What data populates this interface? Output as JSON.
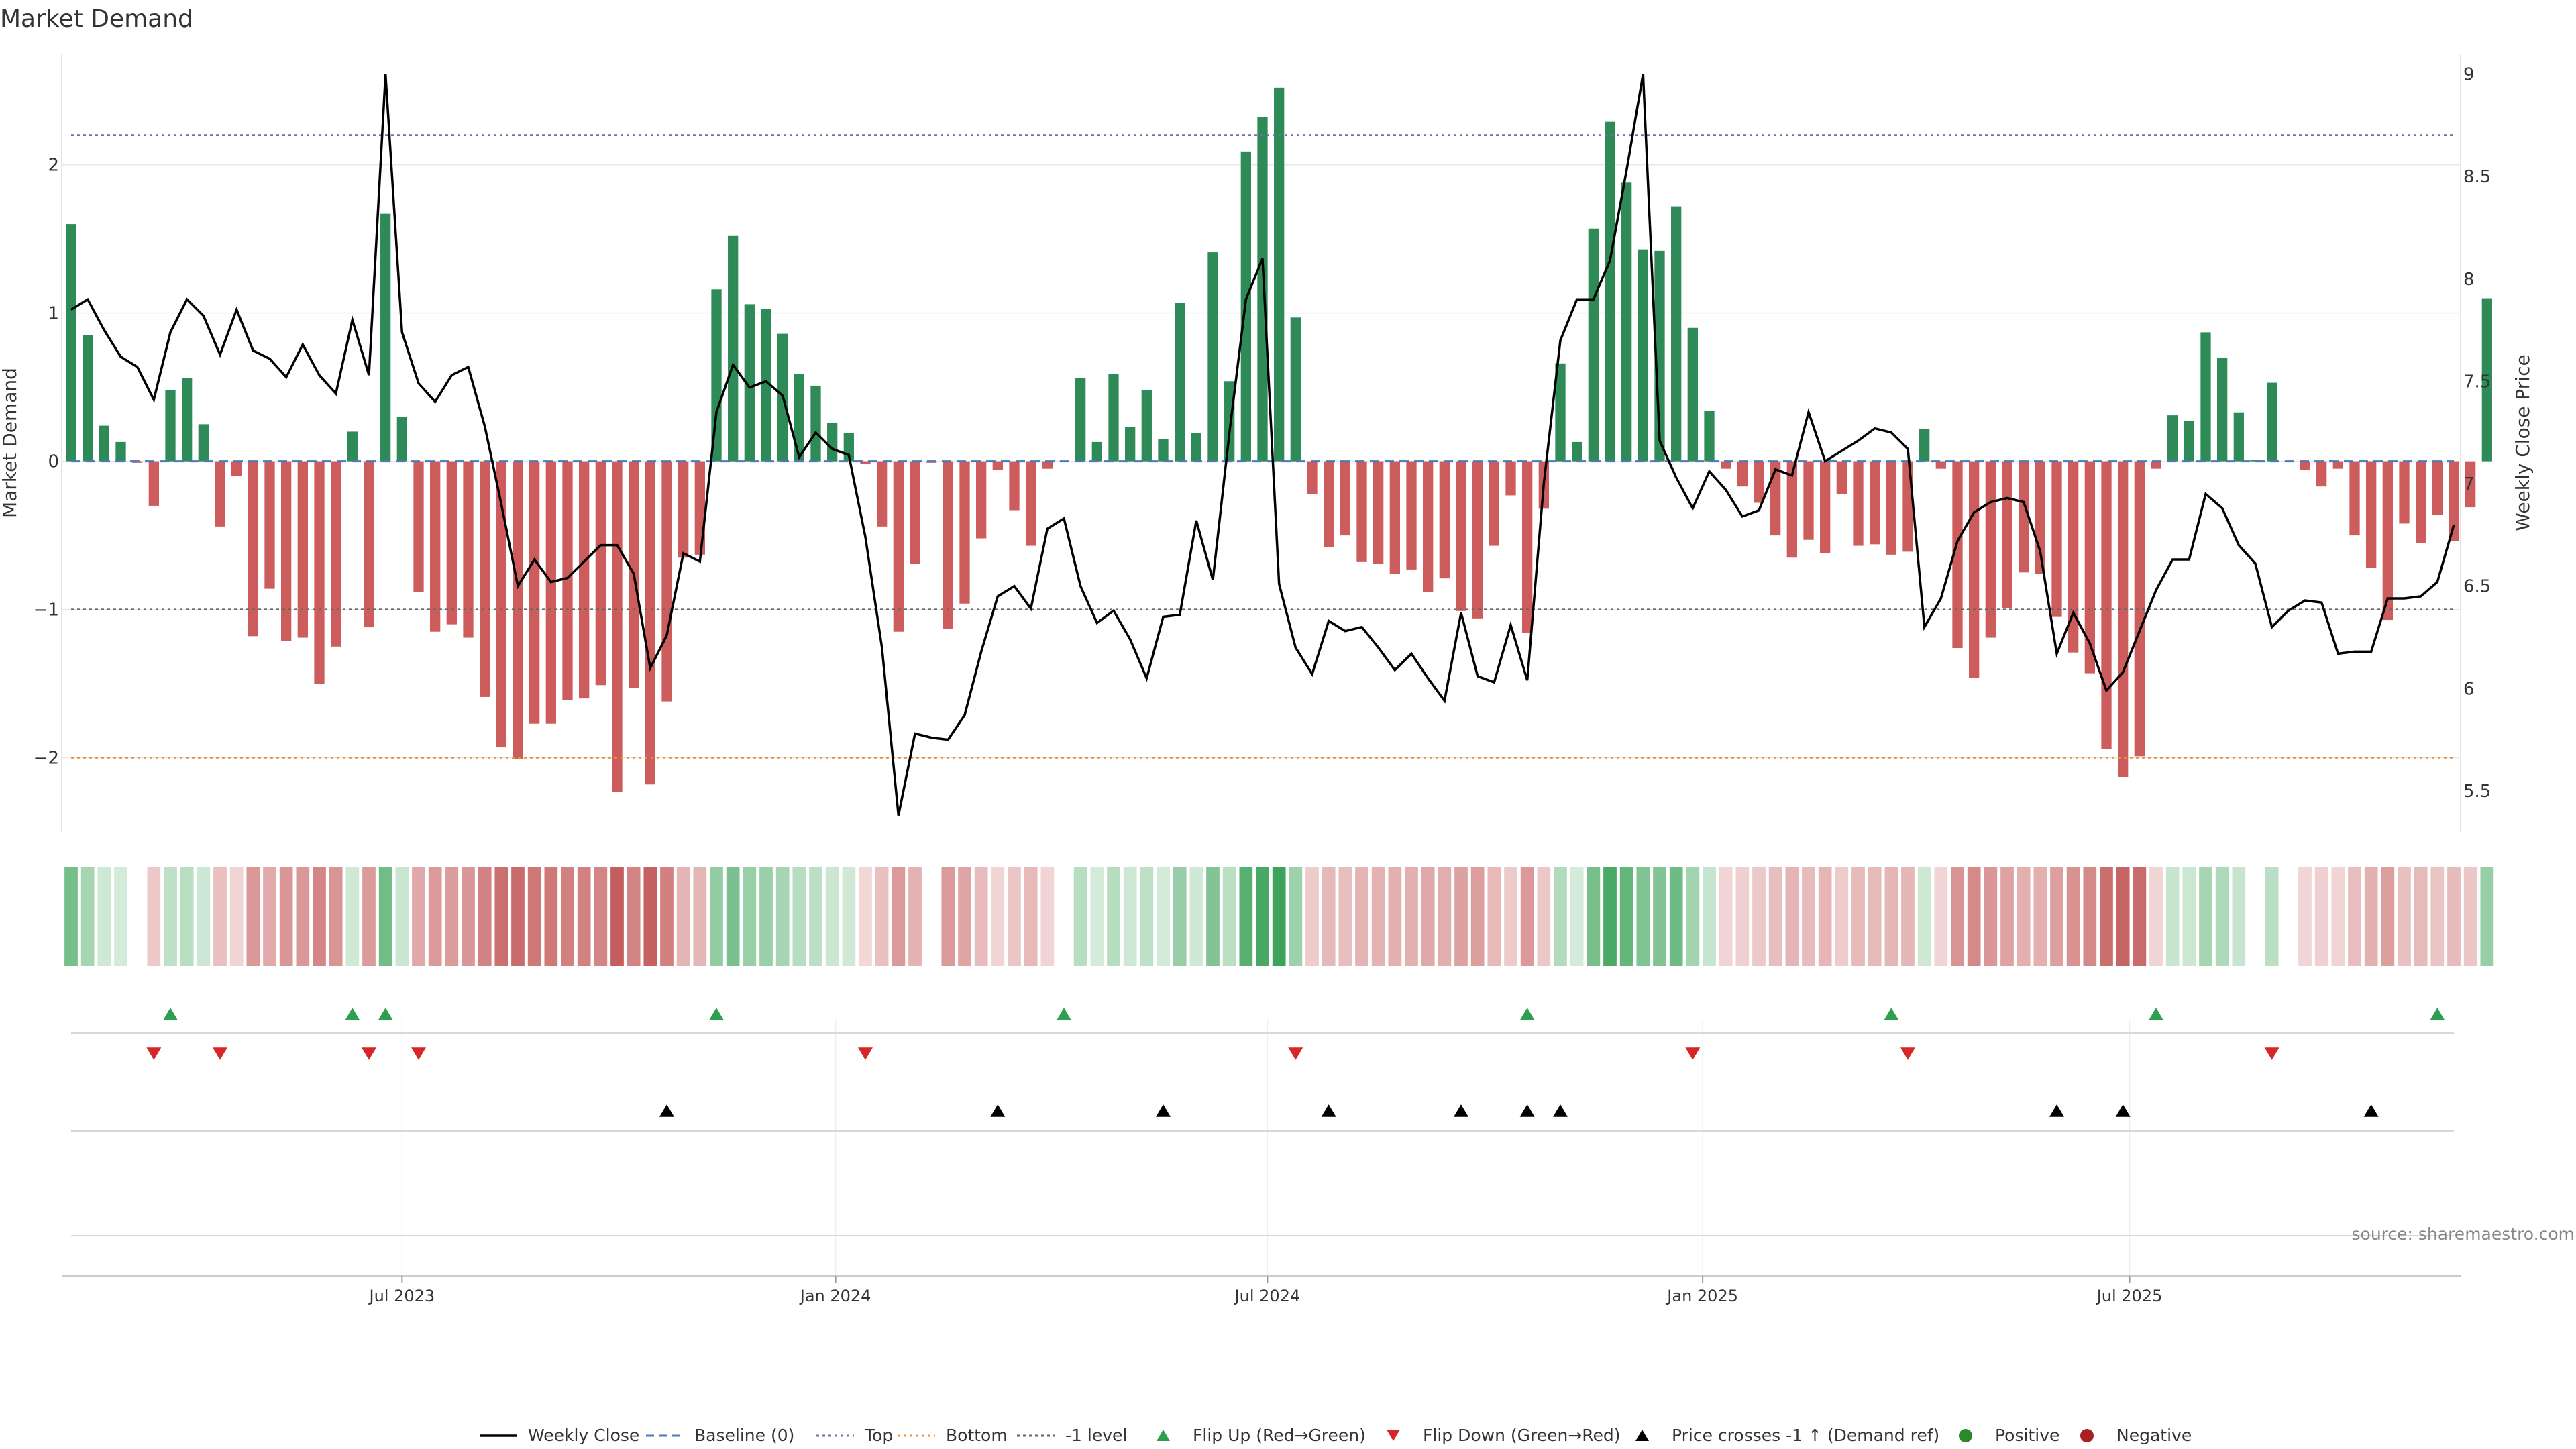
{
  "chart_data": {
    "type": "bar",
    "title": "Market Demand",
    "ylabel_left": "Market Demand",
    "ylabel_right": "Weekly Close Price",
    "ylim_left": [
      -2.5,
      2.75
    ],
    "ylim_right": [
      5.3,
      9.1
    ],
    "yticks_left": [
      {
        "v": 2,
        "label": "2"
      },
      {
        "v": 1,
        "label": "1"
      },
      {
        "v": 0,
        "label": "0"
      },
      {
        "v": -1,
        "label": "−1"
      },
      {
        "v": -2,
        "label": "−2"
      }
    ],
    "yticks_right": [
      {
        "v": 9,
        "label": "9"
      },
      {
        "v": 8.5,
        "label": "8.5"
      },
      {
        "v": 8,
        "label": "8"
      },
      {
        "v": 7.5,
        "label": "7.5"
      },
      {
        "v": 7,
        "label": "7"
      },
      {
        "v": 6.5,
        "label": "6.5"
      },
      {
        "v": 6,
        "label": "6"
      },
      {
        "v": 5.5,
        "label": "5.5"
      }
    ],
    "x_index_range": [
      0,
      144
    ],
    "xticks": [
      {
        "i": 20,
        "label": "Jul 2023"
      },
      {
        "i": 46.2,
        "label": "Jan 2024"
      },
      {
        "i": 72.3,
        "label": "Jul 2024"
      },
      {
        "i": 98.6,
        "label": "Jan 2025"
      },
      {
        "i": 124.4,
        "label": "Jul 2025"
      }
    ],
    "reference_lines": {
      "top": 2.2,
      "bottom": -2.0,
      "minus_one": -1.0,
      "baseline": 0
    },
    "demand": [
      1.6,
      0.85,
      0.24,
      0.13,
      -0.01,
      -0.3,
      0.48,
      0.56,
      0.25,
      -0.44,
      -0.1,
      -1.18,
      -0.86,
      -1.21,
      -1.19,
      -1.5,
      -1.25,
      0.2,
      -1.12,
      1.67,
      0.3,
      -0.88,
      -1.15,
      -1.1,
      -1.19,
      -1.59,
      -1.93,
      -2.01,
      -1.77,
      -1.77,
      -1.61,
      -1.6,
      -1.51,
      -2.23,
      -1.53,
      -2.18,
      -1.62,
      -0.65,
      -0.63,
      1.16,
      1.52,
      1.06,
      1.03,
      0.86,
      0.59,
      0.51,
      0.26,
      0.19,
      -0.02,
      -0.44,
      -1.15,
      -0.69,
      -0.01,
      -1.13,
      -0.96,
      -0.52,
      -0.06,
      -0.33,
      -0.57,
      -0.05,
      0.0,
      0.56,
      0.13,
      0.59,
      0.23,
      0.48,
      0.15,
      1.07,
      0.19,
      1.41,
      0.54,
      2.09,
      2.32,
      2.52,
      0.97,
      -0.22,
      -0.58,
      -0.5,
      -0.68,
      -0.69,
      -0.76,
      -0.73,
      -0.88,
      -0.79,
      -1.01,
      -1.06,
      -0.57,
      -0.23,
      -1.16,
      -0.32,
      0.66,
      0.13,
      1.57,
      2.29,
      1.88,
      1.43,
      1.42,
      1.72,
      0.9,
      0.34,
      -0.05,
      -0.17,
      -0.28,
      -0.5,
      -0.65,
      -0.53,
      -0.62,
      -0.22,
      -0.57,
      -0.56,
      -0.63,
      -0.61,
      0.22,
      -0.05,
      -1.26,
      -1.46,
      -1.19,
      -0.99,
      -0.75,
      -0.76,
      -1.05,
      -1.29,
      -1.43,
      -1.94,
      -2.13,
      -1.99,
      -0.05,
      0.31,
      0.27,
      0.87,
      0.7,
      0.33,
      0.01,
      0.53,
      0.0,
      -0.06,
      -0.17,
      -0.05,
      -0.5,
      -0.72,
      -1.07,
      -0.42,
      -0.55,
      -0.36,
      -0.54,
      -0.31,
      1.1
    ],
    "price": [
      7.85,
      7.9,
      7.75,
      7.62,
      7.57,
      7.41,
      7.74,
      7.9,
      7.82,
      7.63,
      7.85,
      7.65,
      7.61,
      7.52,
      7.68,
      7.53,
      7.44,
      7.8,
      7.53,
      9.0,
      7.74,
      7.49,
      7.4,
      7.53,
      7.57,
      7.28,
      6.9,
      6.5,
      6.63,
      6.52,
      6.54,
      6.62,
      6.7,
      6.7,
      6.56,
      6.1,
      6.26,
      6.66,
      6.62,
      7.35,
      7.58,
      7.47,
      7.5,
      7.43,
      7.13,
      7.25,
      7.17,
      7.14,
      6.74,
      6.2,
      5.38,
      5.78,
      5.76,
      5.75,
      5.87,
      6.18,
      6.45,
      6.5,
      6.39,
      6.78,
      6.83,
      6.5,
      6.32,
      6.38,
      6.24,
      6.05,
      6.35,
      6.36,
      6.82,
      6.53,
      7.25,
      7.9,
      8.1,
      6.51,
      6.2,
      6.07,
      6.33,
      6.28,
      6.3,
      6.2,
      6.09,
      6.17,
      6.05,
      5.94,
      6.37,
      6.06,
      6.03,
      6.31,
      6.04,
      7.0,
      7.7,
      7.9,
      7.9,
      8.09,
      8.53,
      9.0,
      7.21,
      7.03,
      6.88,
      7.06,
      6.97,
      6.84,
      6.87,
      7.07,
      7.04,
      7.35,
      7.11,
      7.16,
      7.21,
      7.27,
      7.25,
      7.17,
      6.3,
      6.44,
      6.72,
      6.86,
      6.91,
      6.93,
      6.91,
      6.67,
      6.17,
      6.37,
      6.22,
      5.99,
      6.08,
      6.28,
      6.48,
      6.63,
      6.63,
      6.95,
      6.88,
      6.7,
      6.61,
      6.3,
      6.38,
      6.43,
      6.42,
      6.17,
      6.18,
      6.18,
      6.44,
      6.44,
      6.45,
      6.52,
      6.8
    ],
    "flip_up_indices": [
      6,
      17,
      19,
      39,
      60,
      88,
      110,
      126,
      143
    ],
    "flip_down_indices": [
      5,
      9,
      18,
      21,
      48,
      74,
      98,
      111,
      133
    ],
    "price_cross_indices": [
      36,
      56,
      66,
      76,
      84,
      88,
      90,
      120,
      124,
      139
    ],
    "source": "source: sharemaestro.com",
    "legend": [
      "Weekly Close",
      "Baseline (0)",
      "Top",
      "Bottom",
      "-1 level",
      "Flip Up (Red→Green)",
      "Flip Down (Green→Red)",
      "Price crosses -1 ↑ (Demand ref)",
      "Positive",
      "Negative"
    ],
    "colors": {
      "positive": "#2e8b57",
      "negative": "#cd5c5c",
      "price_line": "#000000",
      "baseline": "#4a7bb7",
      "top": "#7a6aa8",
      "bottom": "#e8913a",
      "minus_one": "#666666",
      "flip_up": "#2e9e4f",
      "flip_down": "#d62728",
      "cross": "#000000",
      "grid": "#e8e8e8",
      "text": "#333333"
    }
  }
}
